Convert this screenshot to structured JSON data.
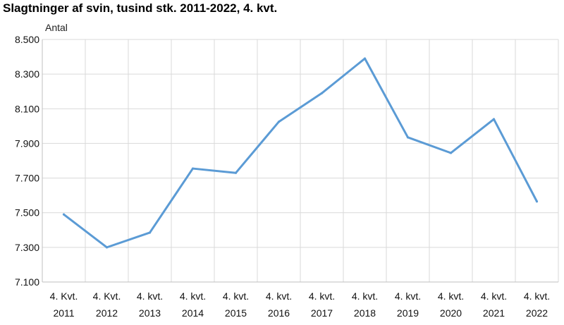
{
  "chart_data": {
    "type": "line",
    "title": "Slagtninger af svin, tusind stk. 2011-2022, 4. kvt.",
    "ylabel": "Antal",
    "xlabel": "",
    "categories": [
      [
        "4. Kvt.",
        "2011"
      ],
      [
        "4. Kvt.",
        "2012"
      ],
      [
        "4. kvt.",
        "2013"
      ],
      [
        "4. kvt.",
        "2014"
      ],
      [
        "4. kvt.",
        "2015"
      ],
      [
        "4. kvt.",
        "2016"
      ],
      [
        "4. kvt.",
        "2017"
      ],
      [
        "4. kvt.",
        "2018"
      ],
      [
        "4. kvt.",
        "2019"
      ],
      [
        "4. kvt.",
        "2020"
      ],
      [
        "4. kvt.",
        "2021"
      ],
      [
        "4. kvt.",
        "2022"
      ]
    ],
    "series": [
      {
        "values": [
          7490,
          7300,
          7385,
          7755,
          7730,
          8025,
          8190,
          8390,
          7935,
          7845,
          8040,
          7565
        ],
        "color": "#5b9bd5"
      }
    ],
    "ylim": [
      7100,
      8500
    ],
    "yticks": [
      "7.100",
      "7.300",
      "7.500",
      "7.700",
      "7.900",
      "8.100",
      "8.300",
      "8.500"
    ],
    "grid": true,
    "gridColor": "#d9d9d9",
    "legend": "none"
  }
}
